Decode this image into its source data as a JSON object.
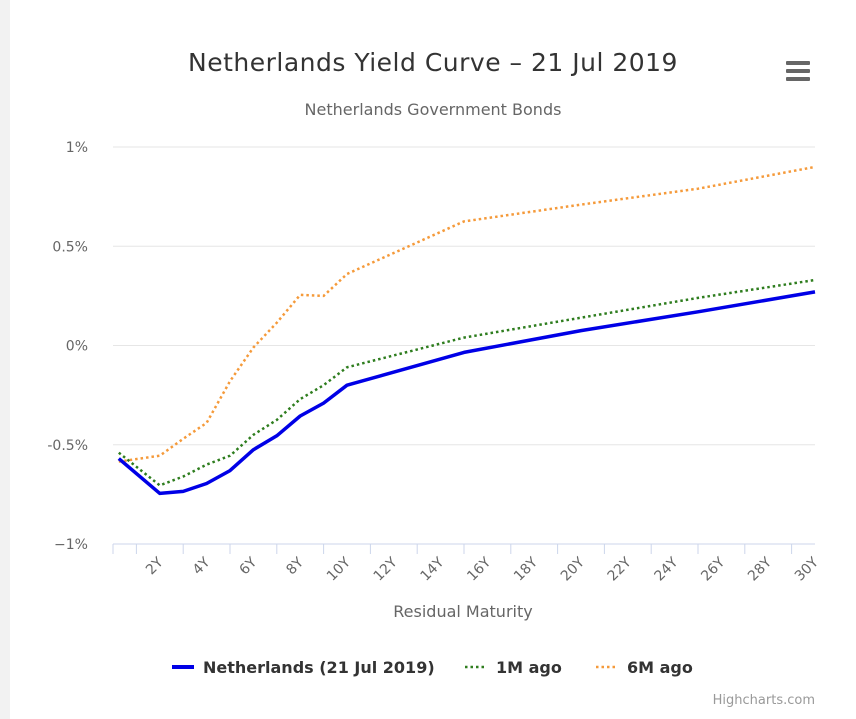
{
  "title": "Netherlands Yield Curve – 21 Jul 2019",
  "subtitle": "Netherlands Government Bonds",
  "credit": "Highcharts.com",
  "menu_icon": "hamburger-menu-icon",
  "chart_data": {
    "type": "line",
    "title": "Netherlands Yield Curve – 21 Jul 2019",
    "subtitle": "Netherlands Government Bonds",
    "xlabel": "Residual Maturity",
    "ylabel": "",
    "xlim": [
      0,
      30
    ],
    "ylim": [
      -1,
      1
    ],
    "x_ticks": [
      2,
      4,
      6,
      8,
      10,
      12,
      14,
      16,
      18,
      20,
      22,
      24,
      26,
      28,
      30
    ],
    "x_tick_labels": [
      "2Y",
      "4Y",
      "6Y",
      "8Y",
      "10Y",
      "12Y",
      "14Y",
      "16Y",
      "18Y",
      "20Y",
      "22Y",
      "24Y",
      "26Y",
      "28Y",
      "30Y"
    ],
    "y_ticks": [
      -1,
      -0.5,
      0,
      0.5,
      1
    ],
    "y_tick_labels": [
      "−1%",
      "-0.5%",
      "0%",
      "0.5%",
      "1%"
    ],
    "grid": true,
    "legend_position": "bottom-center",
    "series": [
      {
        "name": "Netherlands (21 Jul 2019)",
        "color": "#0000e6",
        "dash": "solid",
        "x": [
          0.25,
          2,
          3,
          4,
          5,
          6,
          7,
          8,
          9,
          10,
          15,
          20,
          25,
          30
        ],
        "values": [
          -0.57,
          -0.745,
          -0.735,
          -0.695,
          -0.63,
          -0.525,
          -0.455,
          -0.355,
          -0.29,
          -0.2,
          -0.035,
          0.075,
          0.17,
          0.27
        ]
      },
      {
        "name": "1M ago",
        "color": "#2e7d1e",
        "dash": "dotted",
        "x": [
          0.25,
          2,
          3,
          4,
          5,
          6,
          7,
          8,
          9,
          10,
          15,
          20,
          25,
          30
        ],
        "values": [
          -0.54,
          -0.705,
          -0.66,
          -0.6,
          -0.555,
          -0.45,
          -0.375,
          -0.27,
          -0.2,
          -0.11,
          0.04,
          0.14,
          0.24,
          0.33
        ]
      },
      {
        "name": "6M ago",
        "color": "#f59a3a",
        "dash": "dotted",
        "x": [
          0.25,
          2,
          3,
          4,
          5,
          6,
          7,
          8,
          9,
          10,
          15,
          20,
          25,
          30
        ],
        "values": [
          -0.585,
          -0.555,
          -0.47,
          -0.39,
          -0.18,
          -0.01,
          0.115,
          0.255,
          0.25,
          0.36,
          0.625,
          0.71,
          0.79,
          0.9
        ]
      }
    ]
  }
}
